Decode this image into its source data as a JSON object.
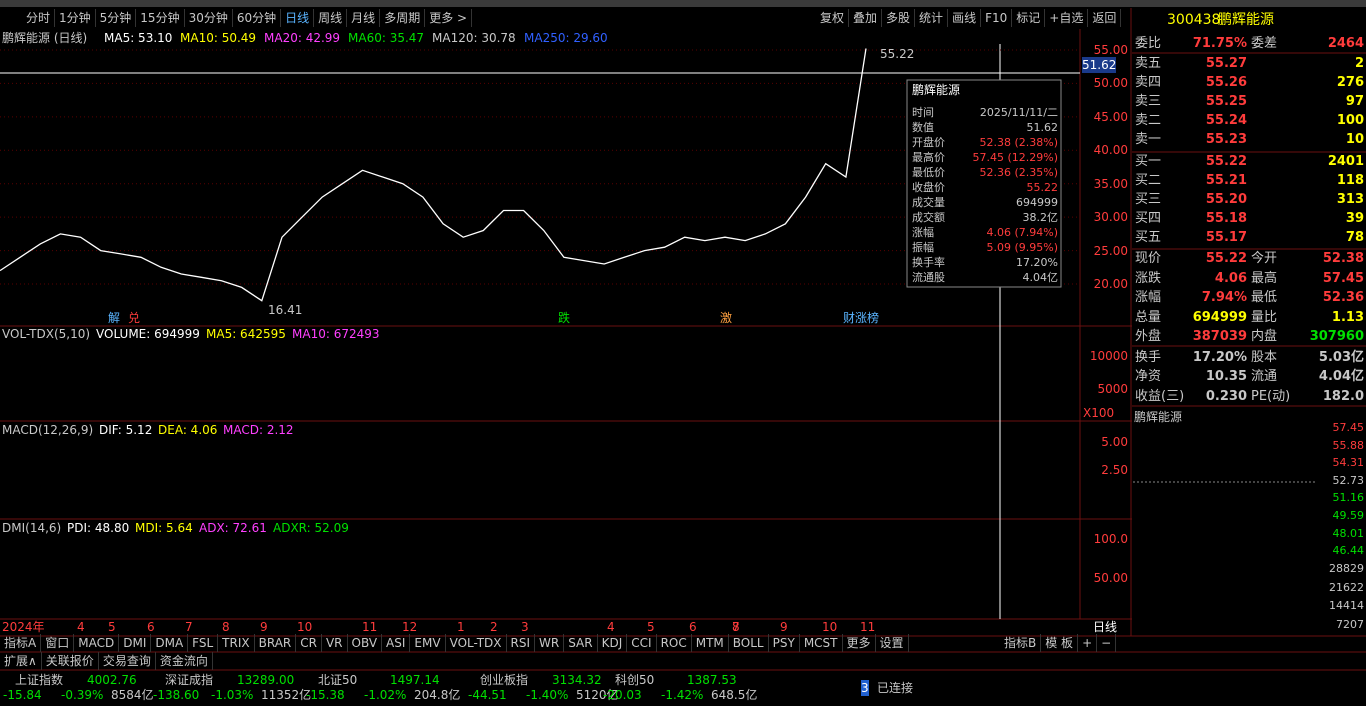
{
  "toolbar": {
    "left": [
      "分时",
      "1分钟",
      "5分钟",
      "15分钟",
      "30分钟",
      "60分钟",
      "日线",
      "周线",
      "月线",
      "多周期",
      "更多 >"
    ],
    "right": [
      "复权",
      "叠加",
      "多股",
      "统计",
      "画线",
      "F10",
      "标记",
      "+自选",
      "返回"
    ]
  },
  "stock_header": {
    "code": "300438",
    "name": "鹏辉能源"
  },
  "main_chart": {
    "title": "鹏辉能源 (日线)",
    "legend": [
      "MA5: 53.10",
      "MA10: 50.49",
      "MA20: 42.99",
      "MA60: 35.47",
      "MA120: 30.78",
      "MA250: 29.60"
    ],
    "last_price_tag": "51.62",
    "high_label": "55.22",
    "low_label": "16.41",
    "event_labels": [
      "解",
      "兑",
      "跌",
      "激",
      "财涨榜"
    ],
    "ylim": [
      13.87,
      57.99
    ],
    "yticks": [
      {
        "value": 55,
        "label": "55.00"
      },
      {
        "value": 50,
        "label": "50.00"
      },
      {
        "value": 45,
        "label": "45.00"
      },
      {
        "value": 40,
        "label": "40.00"
      },
      {
        "value": 35,
        "label": "35.00"
      },
      {
        "value": 30,
        "label": "30.00"
      },
      {
        "value": 25,
        "label": "25.00"
      },
      {
        "value": 20,
        "label": "20.00"
      }
    ],
    "closes": [
      22,
      24,
      26,
      27.5,
      27,
      25,
      24.5,
      24,
      22.5,
      21.5,
      21,
      20.5,
      19.5,
      17.5,
      27,
      30,
      33,
      35,
      37,
      36,
      35,
      33,
      29,
      27,
      28,
      31,
      31,
      28,
      24,
      23.5,
      23,
      24,
      25,
      25.5,
      27,
      26.5,
      27,
      26.5,
      27.5,
      29,
      33,
      38,
      36,
      55.22
    ]
  },
  "volume_panel": {
    "legend": [
      "VOL-TDX(5,10)",
      "VOLUME: 694999",
      "MA5: 642595",
      "MA10: 672493"
    ],
    "ticks": [
      "10000",
      "5000"
    ],
    "unit": "X100"
  },
  "macd_panel": {
    "legend": [
      "MACD(12,26,9)",
      "DIF: 5.12",
      "DEA: 4.06",
      "MACD: 2.12"
    ],
    "ticks": [
      "5.00",
      "2.50"
    ]
  },
  "dmi_panel": {
    "legend": [
      "DMI(14,6)",
      "PDI: 48.80",
      "MDI: 5.64",
      "ADX: 72.61",
      "ADXR: 52.09"
    ],
    "ticks": [
      "100.0",
      "50.00"
    ]
  },
  "x_axis": [
    "2024年",
    "4",
    "5",
    "6",
    "7",
    "8",
    "9",
    "10",
    "11",
    "12",
    "1",
    "2",
    "3",
    "4",
    "5",
    "6",
    "7",
    "8",
    "9",
    "10",
    "11"
  ],
  "period_tag": "日线",
  "popup": {
    "title": "鹏辉能源",
    "rows": [
      [
        "时间",
        "2025/11/11/二"
      ],
      [
        "数值",
        "51.62"
      ],
      [
        "开盘价",
        "52.38 (2.38%)"
      ],
      [
        "最高价",
        "57.45 (12.29%)"
      ],
      [
        "最低价",
        "52.36 (2.35%)"
      ],
      [
        "收盘价",
        "55.22"
      ],
      [
        "成交量",
        "694999"
      ],
      [
        "成交额",
        "38.2亿"
      ],
      [
        "涨幅",
        "4.06 (7.94%)"
      ],
      [
        "振幅",
        "5.09 (9.95%)"
      ],
      [
        "换手率",
        "17.20%"
      ],
      [
        "流通股",
        "4.04亿"
      ]
    ]
  },
  "order_book": {
    "ratio": [
      "委比",
      "71.75%",
      "委差",
      "2464"
    ],
    "asks": [
      [
        "卖五",
        "55.27",
        "2"
      ],
      [
        "卖四",
        "55.26",
        "276"
      ],
      [
        "卖三",
        "55.25",
        "97"
      ],
      [
        "卖二",
        "55.24",
        "100"
      ],
      [
        "卖一",
        "55.23",
        "10"
      ]
    ],
    "bids": [
      [
        "买一",
        "55.22",
        "2401"
      ],
      [
        "买二",
        "55.21",
        "118"
      ],
      [
        "买三",
        "55.20",
        "313"
      ],
      [
        "买四",
        "55.18",
        "39"
      ],
      [
        "买五",
        "55.17",
        "78"
      ]
    ]
  },
  "stats": [
    [
      "现价",
      "55.22",
      "今开",
      "52.38"
    ],
    [
      "涨跌",
      "4.06",
      "最高",
      "57.45"
    ],
    [
      "涨幅",
      "7.94%",
      "最低",
      "52.36"
    ],
    [
      "总量",
      "694999",
      "量比",
      "1.13"
    ],
    [
      "外盘",
      "387039",
      "内盘",
      "307960"
    ],
    [
      "换手",
      "17.20%",
      "股本",
      "5.03亿"
    ],
    [
      "净资",
      "10.35",
      "流通",
      "4.04亿"
    ],
    [
      "收益(三)",
      "0.230",
      "PE(动)",
      "182.0"
    ]
  ],
  "mini_chart": {
    "title": "鹏辉能源",
    "price_ticks": [
      "57.45",
      "55.88",
      "54.31",
      "52.73",
      "51.16",
      "49.59",
      "48.01",
      "46.44"
    ],
    "volume_ticks": [
      "28829",
      "21622",
      "14414",
      "7207"
    ]
  },
  "indicator_tabs": [
    "指标A",
    "窗口",
    "MACD",
    "DMI",
    "DMA",
    "FSL",
    "TRIX",
    "BRAR",
    "CR",
    "VR",
    "OBV",
    "ASI",
    "EMV",
    "VOL-TDX",
    "RSI",
    "WR",
    "SAR",
    "KDJ",
    "CCI",
    "ROC",
    "MTM",
    "BOLL",
    "PSY",
    "MCST",
    "更多",
    "设置"
  ],
  "right_tabs": [
    "指标B",
    "模 板",
    "+",
    "−"
  ],
  "extra_tabs": [
    "扩展∧",
    "关联报价",
    "交易查询",
    "资金流向"
  ],
  "indices": [
    [
      "上证指数",
      "4002.76",
      "-15.84",
      "-0.39%",
      "8584亿"
    ],
    [
      "深证成指",
      "13289.00",
      "-138.60",
      "-1.03%",
      "11352亿"
    ],
    [
      "北证50",
      "1497.14",
      "-15.38",
      "-1.02%",
      "204.8亿"
    ],
    [
      "创业板指",
      "3134.32",
      "-44.51",
      "-1.40%",
      "5120亿"
    ],
    [
      "科创50",
      "1387.53",
      "-20.03",
      "-1.42%",
      "648.5亿"
    ]
  ],
  "connection": {
    "count": "3",
    "status": "已连接"
  }
}
